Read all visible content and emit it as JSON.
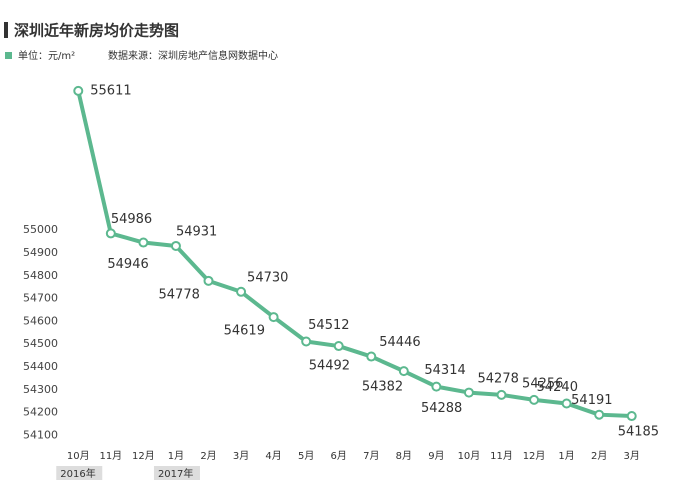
{
  "chart_data": {
    "type": "line",
    "title": "深圳近年新房均价走势图",
    "unit": "单位：元/m²",
    "source": "数据来源：深圳房地产信息网数据中心",
    "categories": [
      "10月",
      "11月",
      "12月",
      "1月",
      "2月",
      "3月",
      "4月",
      "5月",
      "6月",
      "7月",
      "8月",
      "9月",
      "10月",
      "11月",
      "12月",
      "1月",
      "2月",
      "3月"
    ],
    "x2_categories": [
      "2016年",
      null,
      null,
      "2017年",
      null,
      null,
      null,
      null,
      null,
      null,
      null,
      null,
      null,
      null,
      null,
      null,
      null,
      null
    ],
    "values": [
      55611,
      54986,
      54946,
      54931,
      54778,
      54730,
      54619,
      54512,
      54492,
      54446,
      54382,
      54314,
      54288,
      54278,
      54256,
      54240,
      54191,
      54185
    ],
    "color": "#5cb88f",
    "ylim": [
      54080,
      55650
    ],
    "yticks": [
      54100,
      54200,
      54300,
      54400,
      54500,
      54600,
      54700,
      54800,
      54900,
      55000
    ]
  }
}
